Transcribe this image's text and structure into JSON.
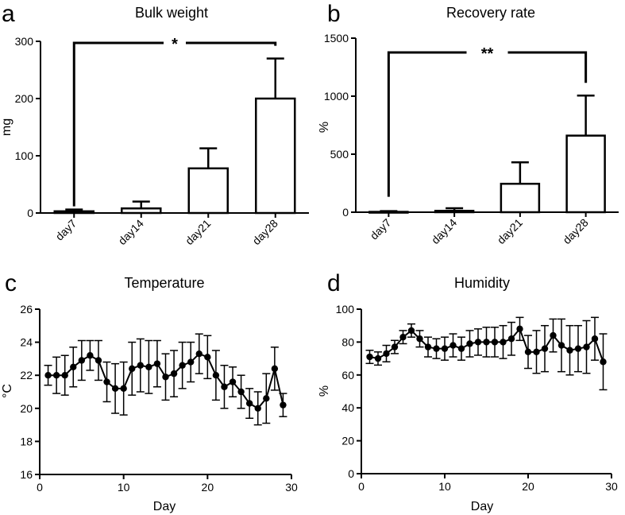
{
  "chart_data": [
    {
      "panel": "a",
      "type": "bar",
      "title": "Bulk weight",
      "xlabel": "",
      "ylabel": "mg",
      "ylim": [
        0,
        300
      ],
      "yticks": [
        0,
        100,
        200,
        300
      ],
      "categories": [
        "day7",
        "day14",
        "day21",
        "day28"
      ],
      "values": [
        3,
        8,
        78,
        200
      ],
      "errors": [
        3,
        12,
        35,
        70
      ],
      "significance": {
        "from": "day7",
        "to": "day28",
        "label": "*"
      }
    },
    {
      "panel": "b",
      "type": "bar",
      "title": "Recovery rate",
      "xlabel": "",
      "ylabel": "%",
      "ylim": [
        0,
        1500
      ],
      "yticks": [
        0,
        500,
        1000,
        1500
      ],
      "categories": [
        "day7",
        "day14",
        "day21",
        "day28"
      ],
      "values": [
        3,
        12,
        245,
        660
      ],
      "errors": [
        6,
        22,
        185,
        345
      ],
      "significance": {
        "from": "day7",
        "to": "day28",
        "label": "**"
      }
    },
    {
      "panel": "c",
      "type": "line",
      "title": "Temperature",
      "xlabel": "Day",
      "ylabel": "°C",
      "xlim": [
        0,
        30
      ],
      "xticks": [
        0,
        10,
        20,
        30
      ],
      "ylim": [
        16,
        26
      ],
      "yticks": [
        16,
        18,
        20,
        22,
        24,
        26
      ],
      "x": [
        1,
        2,
        3,
        4,
        5,
        6,
        7,
        8,
        9,
        10,
        11,
        12,
        13,
        14,
        15,
        16,
        17,
        18,
        19,
        20,
        21,
        22,
        23,
        24,
        25,
        26,
        27,
        28,
        29
      ],
      "y": [
        22.0,
        22.0,
        22.0,
        22.5,
        22.9,
        23.2,
        22.9,
        21.6,
        21.2,
        21.2,
        22.4,
        22.6,
        22.5,
        22.7,
        21.9,
        22.1,
        22.6,
        22.8,
        23.3,
        23.1,
        22.0,
        21.3,
        21.6,
        21.0,
        20.3,
        20.0,
        20.6,
        22.4,
        20.2
      ],
      "err": [
        0.6,
        1.1,
        1.2,
        1.2,
        1.2,
        0.9,
        1.2,
        1.2,
        1.5,
        1.6,
        1.6,
        1.6,
        1.6,
        1.4,
        1.4,
        1.4,
        1.4,
        1.2,
        1.2,
        1.3,
        1.5,
        1.3,
        0.9,
        1.0,
        0.9,
        1.0,
        1.5,
        1.3,
        0.7
      ]
    },
    {
      "panel": "d",
      "type": "line",
      "title": "Humidity",
      "xlabel": "Day",
      "ylabel": "%",
      "xlim": [
        0,
        30
      ],
      "xticks": [
        0,
        10,
        20,
        30
      ],
      "ylim": [
        0,
        100
      ],
      "yticks": [
        0,
        20,
        40,
        60,
        80,
        100
      ],
      "x": [
        1,
        2,
        3,
        4,
        5,
        6,
        7,
        8,
        9,
        10,
        11,
        12,
        13,
        14,
        15,
        16,
        17,
        18,
        19,
        20,
        21,
        22,
        23,
        24,
        25,
        26,
        27,
        28,
        29
      ],
      "y": [
        71,
        70,
        73,
        77,
        83,
        87,
        82,
        77,
        76,
        76,
        78,
        76,
        79,
        80,
        80,
        80,
        80,
        82,
        88,
        74,
        74,
        76,
        84,
        78,
        75,
        76,
        77,
        82,
        68
      ],
      "err": [
        4,
        4,
        5,
        4,
        4,
        4,
        5,
        6,
        6,
        7,
        7,
        7,
        8,
        8,
        9,
        9,
        10,
        10,
        7,
        10,
        13,
        14,
        10,
        16,
        15,
        14,
        16,
        13,
        17
      ]
    }
  ]
}
